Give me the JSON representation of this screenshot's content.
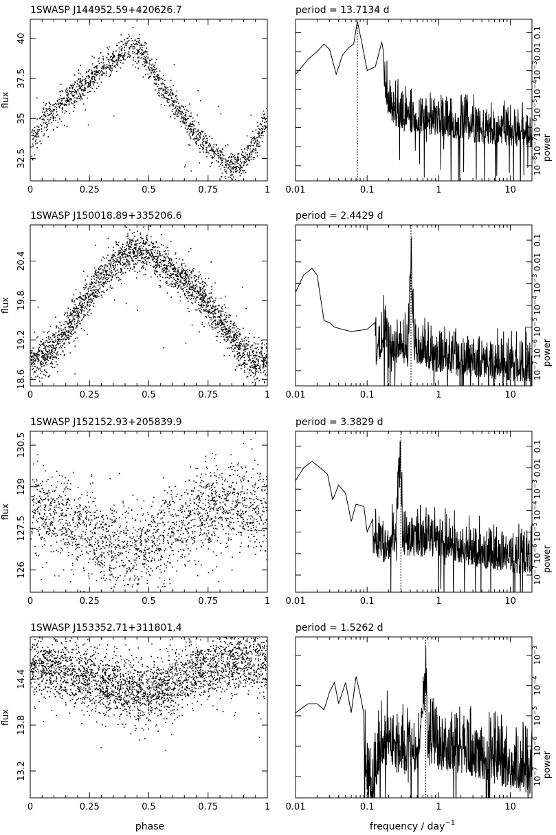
{
  "figure": {
    "xlabel_left": "phase",
    "xlabel_right_main": "frequency / day",
    "xlabel_right_exp": "−1",
    "ylabel_left": "flux",
    "ylabel_right": "power",
    "period_prefix": "period =",
    "period_unit": "d"
  },
  "chart_data": [
    {
      "type": "scatter",
      "title": "1SWASP J144952.59+420626.7",
      "xlabel": "",
      "ylabel": "flux",
      "xlim": [
        0,
        1
      ],
      "ylim": [
        31.1,
        41.2
      ],
      "xticks": [
        "0",
        "0.25",
        "0.5",
        "0.75",
        "1"
      ],
      "yticks": [
        {
          "v": 32.5,
          "label": "32.5"
        },
        {
          "v": 35,
          "label": "35"
        },
        {
          "v": 37.5,
          "label": "37.5"
        },
        {
          "v": 40,
          "label": "40"
        }
      ],
      "trend": [
        [
          0,
          33.2
        ],
        [
          0.05,
          34.8
        ],
        [
          0.12,
          35.8
        ],
        [
          0.2,
          36.8
        ],
        [
          0.28,
          37.9
        ],
        [
          0.33,
          38.4
        ],
        [
          0.38,
          39.0
        ],
        [
          0.42,
          39.6
        ],
        [
          0.46,
          39.4
        ],
        [
          0.5,
          38.2
        ],
        [
          0.55,
          37.0
        ],
        [
          0.6,
          36.2
        ],
        [
          0.65,
          35.0
        ],
        [
          0.7,
          34.0
        ],
        [
          0.75,
          33.2
        ],
        [
          0.8,
          32.4
        ],
        [
          0.85,
          32.0
        ],
        [
          0.9,
          32.4
        ],
        [
          0.95,
          33.6
        ],
        [
          1.0,
          35.0
        ]
      ],
      "scatter_sd": 0.45,
      "n_points": 1500
    },
    {
      "type": "line",
      "title": "period = 13.7134 d",
      "period": "13.7134",
      "xlabel": "frequency / day^-1",
      "ylabel": "power",
      "xscale": "log",
      "yscale": "log",
      "xlim": [
        0.01,
        20
      ],
      "ylim_exp": [
        -8.8,
        -0.3
      ],
      "xticks": [
        {
          "v": 0.01,
          "label": "0.01"
        },
        {
          "v": 0.1,
          "label": "0.1"
        },
        {
          "v": 1,
          "label": "1"
        },
        {
          "v": 10,
          "label": "10"
        }
      ],
      "yticks_exp": [
        -8,
        -7,
        -6,
        -5,
        -4,
        -3,
        -2,
        -1
      ],
      "peak_freq": 0.0729,
      "envelope": [
        [
          0.01,
          -3.2
        ],
        [
          0.015,
          -2.4
        ],
        [
          0.02,
          -2.0
        ],
        [
          0.025,
          -1.6
        ],
        [
          0.03,
          -1.9
        ],
        [
          0.037,
          -3.2
        ],
        [
          0.045,
          -2.2
        ],
        [
          0.055,
          -1.8
        ],
        [
          0.065,
          -1.6
        ],
        [
          0.073,
          -0.4
        ],
        [
          0.085,
          -1.6
        ],
        [
          0.1,
          -3.0
        ],
        [
          0.13,
          -2.8
        ],
        [
          0.16,
          -1.5
        ],
        [
          0.2,
          -3.5
        ],
        [
          0.3,
          -4.2
        ],
        [
          0.5,
          -4.3
        ],
        [
          1,
          -4.5
        ],
        [
          2,
          -4.7
        ],
        [
          5,
          -4.9
        ],
        [
          10,
          -5.0
        ],
        [
          20,
          -5.0
        ]
      ],
      "noise_start": 0.17
    },
    {
      "type": "scatter",
      "title": "1SWASP J150018.89+335206.6",
      "xlabel": "",
      "ylabel": "flux",
      "xlim": [
        0,
        1
      ],
      "ylim": [
        18.5,
        20.95
      ],
      "xticks": [
        "0",
        "0.25",
        "0.5",
        "0.75",
        "1"
      ],
      "yticks": [
        {
          "v": 18.6,
          "label": "18.6"
        },
        {
          "v": 19.2,
          "label": "19.2"
        },
        {
          "v": 19.8,
          "label": "19.8"
        },
        {
          "v": 20.4,
          "label": "20.4"
        }
      ],
      "trend": [
        [
          0,
          18.9
        ],
        [
          0.05,
          18.95
        ],
        [
          0.1,
          19.1
        ],
        [
          0.15,
          19.35
        ],
        [
          0.2,
          19.65
        ],
        [
          0.25,
          19.9
        ],
        [
          0.3,
          20.15
        ],
        [
          0.35,
          20.35
        ],
        [
          0.4,
          20.5
        ],
        [
          0.45,
          20.55
        ],
        [
          0.5,
          20.5
        ],
        [
          0.55,
          20.4
        ],
        [
          0.6,
          20.25
        ],
        [
          0.65,
          20.1
        ],
        [
          0.7,
          19.95
        ],
        [
          0.75,
          19.75
        ],
        [
          0.8,
          19.5
        ],
        [
          0.85,
          19.25
        ],
        [
          0.9,
          19.0
        ],
        [
          0.95,
          18.9
        ],
        [
          1.0,
          18.85
        ]
      ],
      "scatter_sd": 0.15,
      "n_points": 2400
    },
    {
      "type": "line",
      "title": "period = 2.4429 d",
      "period": "2.4429",
      "xlabel": "frequency / day^-1",
      "ylabel": "power",
      "xscale": "log",
      "yscale": "log",
      "xlim": [
        0.01,
        20
      ],
      "ylim_exp": [
        -7.7,
        -0.3
      ],
      "xticks": [
        {
          "v": 0.01,
          "label": "0.01"
        },
        {
          "v": 0.1,
          "label": "0.1"
        },
        {
          "v": 1,
          "label": "1"
        },
        {
          "v": 10,
          "label": "10"
        }
      ],
      "yticks_exp": [
        -7,
        -6,
        -5,
        -4,
        -3,
        -2,
        -1
      ],
      "peak_freq": 0.4094,
      "envelope": [
        [
          0.01,
          -3.4
        ],
        [
          0.013,
          -2.6
        ],
        [
          0.017,
          -2.3
        ],
        [
          0.02,
          -2.6
        ],
        [
          0.025,
          -4.7
        ],
        [
          0.03,
          -4.8
        ],
        [
          0.035,
          -5.0
        ],
        [
          0.045,
          -5.1
        ],
        [
          0.06,
          -5.2
        ],
        [
          0.1,
          -5.1
        ],
        [
          0.15,
          -4.6
        ],
        [
          0.18,
          -3.7
        ],
        [
          0.2,
          -4.9
        ],
        [
          0.3,
          -4.5
        ],
        [
          0.37,
          -4.9
        ],
        [
          0.41,
          -0.6
        ],
        [
          0.45,
          -4.6
        ],
        [
          1,
          -5.2
        ],
        [
          3,
          -5.3
        ],
        [
          10,
          -5.5
        ],
        [
          20,
          -5.5
        ]
      ],
      "noise_start": 0.13
    },
    {
      "type": "scatter",
      "title": "1SWASP J152152.93+205839.9",
      "xlabel": "",
      "ylabel": "flux",
      "xlim": [
        0,
        1
      ],
      "ylim": [
        125.2,
        131.0
      ],
      "xticks": [
        "0",
        "0.25",
        "0.5",
        "0.75",
        "1"
      ],
      "yticks": [
        {
          "v": 126,
          "label": "126"
        },
        {
          "v": 127.5,
          "label": "127.5"
        },
        {
          "v": 129,
          "label": "129"
        },
        {
          "v": 130.5,
          "label": "130.5"
        }
      ],
      "trend": [
        [
          0,
          128.2
        ],
        [
          0.1,
          128.0
        ],
        [
          0.2,
          127.6
        ],
        [
          0.3,
          127.0
        ],
        [
          0.4,
          126.8
        ],
        [
          0.45,
          126.7
        ],
        [
          0.5,
          126.9
        ],
        [
          0.6,
          127.5
        ],
        [
          0.7,
          128.0
        ],
        [
          0.8,
          128.3
        ],
        [
          0.9,
          128.2
        ],
        [
          1.0,
          128.1
        ]
      ],
      "scatter_sd": 0.8,
      "n_points": 1900
    },
    {
      "type": "line",
      "title": "period = 3.3829 d",
      "period": "3.3829",
      "xlabel": "frequency / day^-1",
      "ylabel": "power",
      "xscale": "log",
      "yscale": "log",
      "xlim": [
        0.01,
        20
      ],
      "ylim_exp": [
        -7.8,
        -0.3
      ],
      "xticks": [
        {
          "v": 0.01,
          "label": "0.01"
        },
        {
          "v": 0.1,
          "label": "0.1"
        },
        {
          "v": 1,
          "label": "1"
        },
        {
          "v": 10,
          "label": "10"
        }
      ],
      "yticks_exp": [
        -7,
        -6,
        -5,
        -4,
        -3,
        -2,
        -1
      ],
      "peak_freq": 0.2956,
      "envelope": [
        [
          0.01,
          -2.6
        ],
        [
          0.013,
          -2.0
        ],
        [
          0.017,
          -1.7
        ],
        [
          0.022,
          -2.0
        ],
        [
          0.028,
          -2.3
        ],
        [
          0.033,
          -3.5
        ],
        [
          0.04,
          -2.8
        ],
        [
          0.05,
          -3.2
        ],
        [
          0.06,
          -4.5
        ],
        [
          0.07,
          -3.7
        ],
        [
          0.09,
          -3.8
        ],
        [
          0.1,
          -5.0
        ],
        [
          0.13,
          -4.1
        ],
        [
          0.18,
          -4.5
        ],
        [
          0.25,
          -4.0
        ],
        [
          0.29,
          -0.5
        ],
        [
          0.32,
          -4.1
        ],
        [
          1,
          -4.2
        ],
        [
          3,
          -4.6
        ],
        [
          10,
          -4.9
        ],
        [
          20,
          -5.0
        ]
      ],
      "noise_start": 0.12
    },
    {
      "type": "scatter",
      "title": "1SWASP J153352.71+311801.4",
      "xlabel": "phase",
      "ylabel": "flux",
      "xlim": [
        0,
        1
      ],
      "ylim": [
        12.85,
        14.95
      ],
      "xticks": [
        "0",
        "0.25",
        "0.5",
        "0.75",
        "1"
      ],
      "yticks": [
        {
          "v": 13.2,
          "label": "13.2"
        },
        {
          "v": 13.8,
          "label": "13.8"
        },
        {
          "v": 14.4,
          "label": "14.4"
        }
      ],
      "trend": [
        [
          0,
          14.62
        ],
        [
          0.1,
          14.55
        ],
        [
          0.2,
          14.45
        ],
        [
          0.3,
          14.35
        ],
        [
          0.4,
          14.28
        ],
        [
          0.5,
          14.25
        ],
        [
          0.6,
          14.35
        ],
        [
          0.7,
          14.5
        ],
        [
          0.8,
          14.62
        ],
        [
          0.9,
          14.65
        ],
        [
          1.0,
          14.62
        ]
      ],
      "scatter_sd": 0.2,
      "n_points": 2800
    },
    {
      "type": "line",
      "title": "period = 1.5262 d",
      "period": "1.5262",
      "xlabel": "frequency / day^-1",
      "ylabel": "power",
      "xscale": "log",
      "yscale": "log",
      "xlim": [
        0.01,
        20
      ],
      "ylim_exp": [
        -7.7,
        -2.4
      ],
      "xticks": [
        {
          "v": 0.01,
          "label": "0.01"
        },
        {
          "v": 0.1,
          "label": "0.1"
        },
        {
          "v": 1,
          "label": "1"
        },
        {
          "v": 10,
          "label": "10"
        }
      ],
      "yticks_exp": [
        -7,
        -6,
        -5,
        -4,
        -3
      ],
      "peak_freq": 0.6552,
      "envelope": [
        [
          0.01,
          -4.9
        ],
        [
          0.015,
          -4.6
        ],
        [
          0.02,
          -4.6
        ],
        [
          0.025,
          -4.8
        ],
        [
          0.03,
          -4.2
        ],
        [
          0.035,
          -3.9
        ],
        [
          0.04,
          -4.6
        ],
        [
          0.05,
          -3.9
        ],
        [
          0.06,
          -4.9
        ],
        [
          0.07,
          -3.7
        ],
        [
          0.08,
          -4.3
        ],
        [
          0.1,
          -5.5
        ],
        [
          0.12,
          -6.5
        ],
        [
          0.15,
          -4.6
        ],
        [
          0.2,
          -4.7
        ],
        [
          0.3,
          -5.0
        ],
        [
          0.5,
          -4.8
        ],
        [
          0.66,
          -2.5
        ],
        [
          0.7,
          -4.6
        ],
        [
          1,
          -4.8
        ],
        [
          3,
          -5.0
        ],
        [
          10,
          -5.4
        ],
        [
          20,
          -5.6
        ]
      ],
      "noise_start": 0.09
    }
  ]
}
